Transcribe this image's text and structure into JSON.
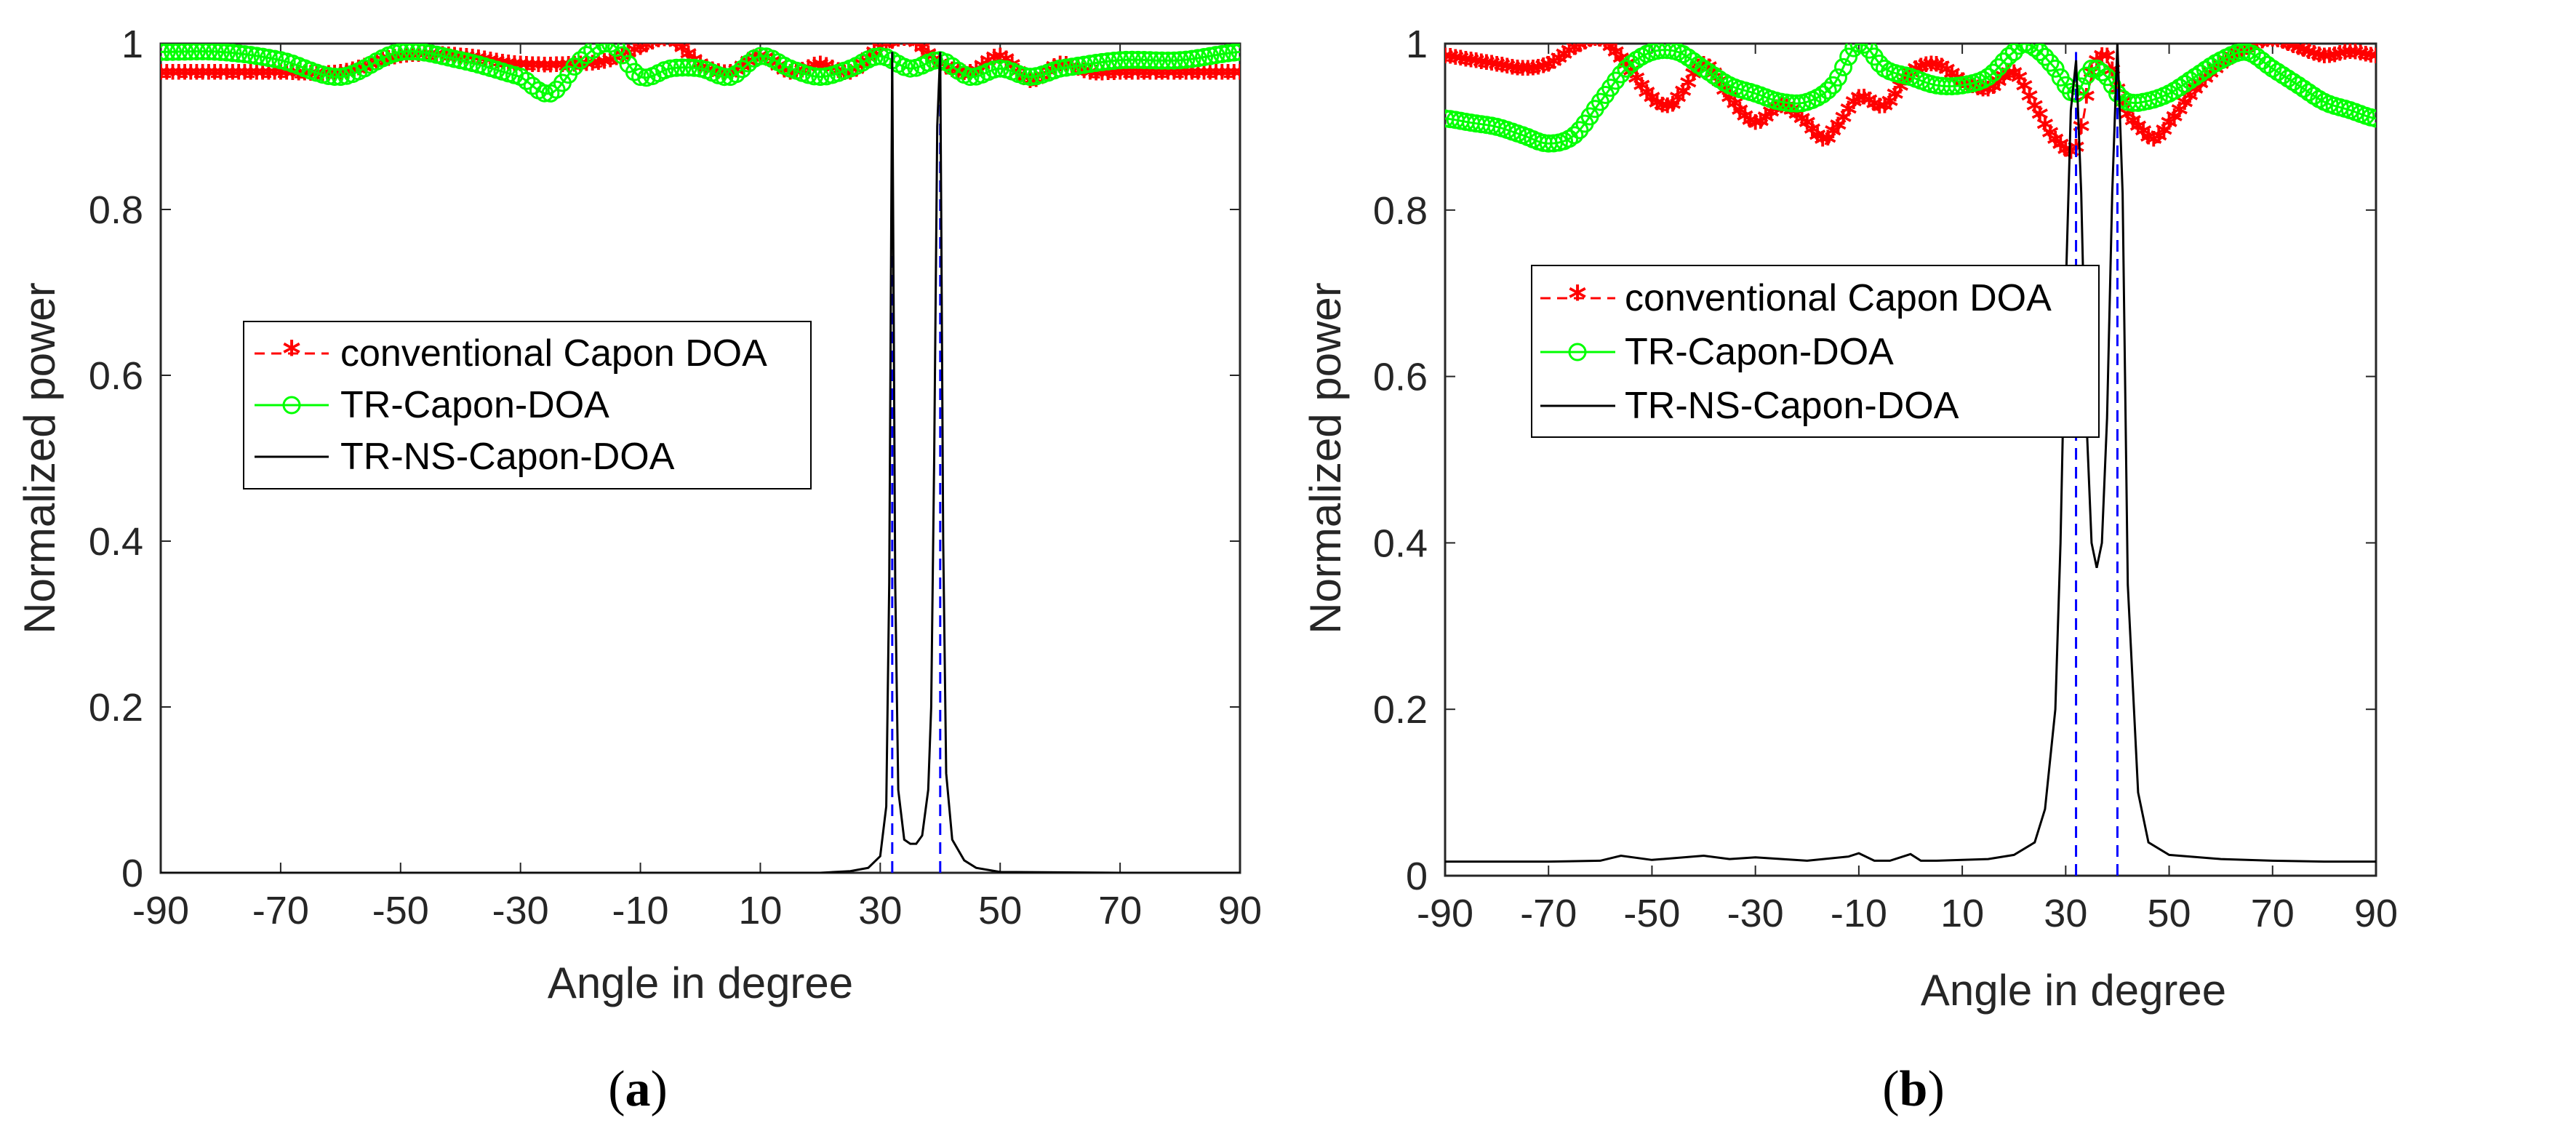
{
  "colors": {
    "conventional": "#ff0000",
    "tr": "#00ff00",
    "trns": "#000000",
    "true_doa": "#0000ff",
    "axis": "#262626"
  },
  "chart_data": [
    {
      "type": "line",
      "panel": "a",
      "caption": "(a)",
      "caption_letter": "a",
      "xlabel": "Angle in degree",
      "ylabel": "Normalized power",
      "xlim": [
        -90,
        90
      ],
      "ylim": [
        0,
        1
      ],
      "xticks": [
        -90,
        -70,
        -50,
        -30,
        -10,
        10,
        30,
        50,
        70,
        90
      ],
      "yticks": [
        0,
        0.2,
        0.4,
        0.6,
        0.8,
        1
      ],
      "ytick_labels": [
        "0",
        "0.2",
        "0.4",
        "0.6",
        "0.8",
        "1"
      ],
      "legend_position": "middle-left",
      "true_doa": [
        32,
        40
      ],
      "series": [
        {
          "name": "conventional Capon DOA",
          "style": "dashed-star",
          "x": [
            -90,
            -80,
            -70,
            -60,
            -50,
            -40,
            -30,
            -20,
            -15,
            -10,
            -5,
            0,
            5,
            10,
            15,
            20,
            25,
            30,
            35,
            40,
            45,
            50,
            55,
            60,
            65,
            70,
            80,
            90
          ],
          "y": [
            0.96,
            0.96,
            0.96,
            0.96,
            0.98,
            0.98,
            0.97,
            0.97,
            0.975,
            0.99,
            1.0,
            0.97,
            0.96,
            0.98,
            0.96,
            0.97,
            0.96,
            0.99,
            1.0,
            0.97,
            0.96,
            0.98,
            0.95,
            0.97,
            0.96,
            0.96,
            0.96,
            0.96
          ]
        },
        {
          "name": "TR-Capon-DOA",
          "style": "solid-circle",
          "x": [
            -90,
            -80,
            -70,
            -60,
            -50,
            -40,
            -30,
            -25,
            -20,
            -15,
            -10,
            -5,
            0,
            5,
            10,
            15,
            20,
            25,
            30,
            35,
            40,
            45,
            50,
            55,
            60,
            70,
            80,
            90
          ],
          "y": [
            0.99,
            0.99,
            0.98,
            0.96,
            0.99,
            0.98,
            0.96,
            0.94,
            0.98,
            1.0,
            0.96,
            0.97,
            0.97,
            0.96,
            0.985,
            0.97,
            0.96,
            0.97,
            0.985,
            0.97,
            0.98,
            0.96,
            0.97,
            0.96,
            0.97,
            0.98,
            0.98,
            0.99
          ]
        },
        {
          "name": "TR-NS-Capon-DOA",
          "style": "solid",
          "x": [
            -90,
            0,
            20,
            25,
            28,
            30,
            31,
            31.5,
            32,
            32.5,
            33,
            34,
            35,
            36,
            37,
            38,
            38.5,
            39,
            39.5,
            40,
            40.5,
            41,
            42,
            44,
            46,
            50,
            70,
            90
          ],
          "y": [
            0,
            0,
            0,
            0.002,
            0.006,
            0.02,
            0.08,
            0.35,
            0.99,
            0.35,
            0.1,
            0.04,
            0.035,
            0.035,
            0.045,
            0.1,
            0.2,
            0.5,
            0.9,
            0.99,
            0.4,
            0.12,
            0.04,
            0.015,
            0.006,
            0.001,
            0,
            0
          ]
        }
      ]
    },
    {
      "type": "line",
      "panel": "b",
      "caption": "(b)",
      "caption_letter": "b",
      "xlabel": "Angle in degree",
      "ylabel": "Normalized power",
      "xlim": [
        -90,
        90
      ],
      "ylim": [
        0,
        1
      ],
      "xticks": [
        -90,
        -70,
        -50,
        -30,
        -10,
        10,
        30,
        50,
        70,
        90
      ],
      "yticks": [
        0,
        0.2,
        0.4,
        0.6,
        0.8,
        1
      ],
      "ytick_labels": [
        "0",
        "0.2",
        "0.4",
        "0.6",
        "0.8",
        "1"
      ],
      "legend_position": "upper-left",
      "true_doa": [
        32,
        40
      ],
      "series": [
        {
          "name": "conventional Capon DOA",
          "style": "dashed-star",
          "x": [
            -90,
            -85,
            -80,
            -75,
            -70,
            -65,
            -60,
            -55,
            -50,
            -47,
            -45,
            -40,
            -35,
            -30,
            -25,
            -20,
            -17,
            -15,
            -10,
            -5,
            0,
            5,
            10,
            15,
            20,
            25,
            28,
            32,
            35,
            38,
            40,
            42,
            45,
            47,
            50,
            55,
            60,
            65,
            70,
            75,
            80,
            85,
            90
          ],
          "y": [
            0.98,
            0.975,
            0.97,
            0.965,
            0.97,
            0.99,
            1.0,
            0.97,
            0.93,
            0.92,
            0.93,
            0.97,
            0.93,
            0.9,
            0.92,
            0.9,
            0.88,
            0.89,
            0.93,
            0.92,
            0.96,
            0.97,
            0.95,
            0.94,
            0.96,
            0.91,
            0.88,
            0.87,
            0.96,
            0.98,
            0.94,
            0.91,
            0.89,
            0.88,
            0.9,
            0.94,
            0.97,
            0.99,
            1.0,
            0.99,
            0.98,
            0.985,
            0.98
          ]
        },
        {
          "name": "TR-Capon-DOA",
          "style": "solid-circle",
          "x": [
            -90,
            -85,
            -80,
            -75,
            -70,
            -65,
            -60,
            -55,
            -50,
            -45,
            -40,
            -35,
            -30,
            -25,
            -20,
            -15,
            -10,
            -5,
            0,
            5,
            10,
            15,
            20,
            22,
            25,
            28,
            30,
            32,
            35,
            38,
            40,
            42,
            45,
            50,
            55,
            60,
            65,
            70,
            75,
            80,
            85,
            90
          ],
          "y": [
            0.91,
            0.905,
            0.9,
            0.89,
            0.88,
            0.89,
            0.93,
            0.97,
            0.99,
            0.99,
            0.97,
            0.95,
            0.94,
            0.93,
            0.93,
            0.95,
            1.0,
            0.97,
            0.96,
            0.95,
            0.95,
            0.96,
            0.99,
            1.0,
            0.99,
            0.97,
            0.95,
            0.94,
            0.97,
            0.96,
            0.94,
            0.93,
            0.93,
            0.94,
            0.96,
            0.98,
            0.99,
            0.97,
            0.95,
            0.93,
            0.92,
            0.91
          ]
        },
        {
          "name": "TR-NS-Capon-DOA",
          "style": "solid",
          "x": [
            -90,
            -70,
            -60,
            -56,
            -50,
            -40,
            -35,
            -30,
            -20,
            -12,
            -10,
            -7,
            -4,
            0,
            2,
            5,
            10,
            15,
            20,
            24,
            26,
            28,
            29,
            30,
            31,
            32,
            33,
            34,
            35,
            36,
            37,
            38,
            39,
            40,
            41,
            42,
            44,
            46,
            50,
            60,
            70,
            80,
            90
          ],
          "y": [
            0.017,
            0.017,
            0.018,
            0.024,
            0.019,
            0.024,
            0.02,
            0.022,
            0.018,
            0.023,
            0.027,
            0.018,
            0.018,
            0.026,
            0.018,
            0.018,
            0.019,
            0.02,
            0.025,
            0.04,
            0.08,
            0.2,
            0.4,
            0.7,
            0.92,
            0.98,
            0.82,
            0.55,
            0.4,
            0.37,
            0.4,
            0.55,
            0.82,
            1.0,
            0.82,
            0.35,
            0.1,
            0.04,
            0.025,
            0.02,
            0.018,
            0.017,
            0.017
          ]
        }
      ]
    }
  ]
}
